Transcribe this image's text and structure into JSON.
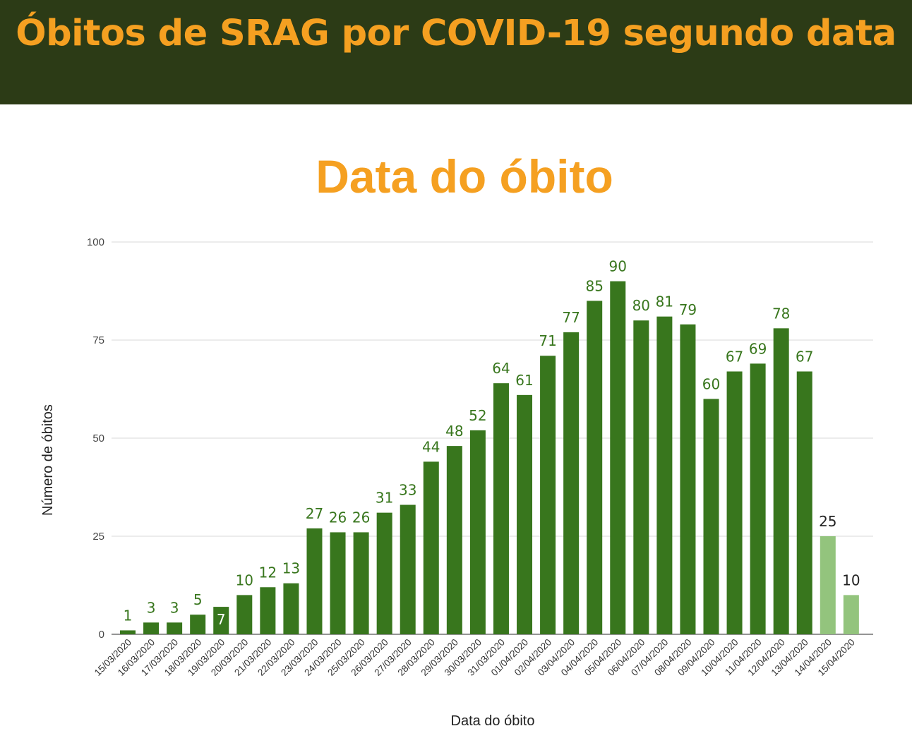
{
  "header": {
    "title": "Óbitos de SRAG por COVID-19 segundo data"
  },
  "colors": {
    "banner_background": "#2c3b16",
    "title_orange": "#f5a021",
    "bar_dark_green": "#38761d",
    "bar_light_green": "#93c47d",
    "label_dark_green": "#38761d",
    "label_black": "#222222",
    "gridline": "#d9d9d9"
  },
  "chart_data": {
    "type": "bar",
    "title": "Data do óbito",
    "xlabel": "Data do óbito",
    "ylabel": "Número de óbitos",
    "ylim": [
      0,
      100
    ],
    "yticks": [
      "0",
      "25",
      "50",
      "75",
      "100"
    ],
    "grid": true,
    "legend": "none",
    "categories": [
      "15/03/2020",
      "16/03/2020",
      "17/03/2020",
      "18/03/2020",
      "19/03/2020",
      "20/03/2020",
      "21/03/2020",
      "22/03/2020",
      "23/03/2020",
      "24/03/2020",
      "25/03/2020",
      "26/03/2020",
      "27/03/2020",
      "28/03/2020",
      "29/03/2020",
      "30/03/2020",
      "31/03/2020",
      "01/04/2020",
      "02/04/2020",
      "03/04/2020",
      "04/04/2020",
      "05/04/2020",
      "06/04/2020",
      "07/04/2020",
      "08/04/2020",
      "09/04/2020",
      "10/04/2020",
      "11/04/2020",
      "12/04/2020",
      "13/04/2020",
      "14/04/2020",
      "15/04/2020"
    ],
    "values": [
      1,
      3,
      3,
      5,
      7,
      10,
      12,
      13,
      27,
      26,
      26,
      31,
      33,
      44,
      48,
      52,
      64,
      61,
      71,
      77,
      85,
      90,
      80,
      81,
      79,
      60,
      67,
      69,
      78,
      67,
      25,
      10
    ],
    "data_labels": [
      "1",
      "3",
      "3",
      "5",
      "7",
      "10",
      "12",
      "13",
      "27",
      "26",
      "26",
      "31",
      "33",
      "44",
      "48",
      "52",
      "64",
      "61",
      "71",
      "77",
      "85",
      "90",
      "80",
      "81",
      "79",
      "60",
      "67",
      "69",
      "78",
      "67",
      "25",
      "10"
    ],
    "light_bar_categories": [
      "14/04/2020",
      "15/04/2020"
    ]
  }
}
